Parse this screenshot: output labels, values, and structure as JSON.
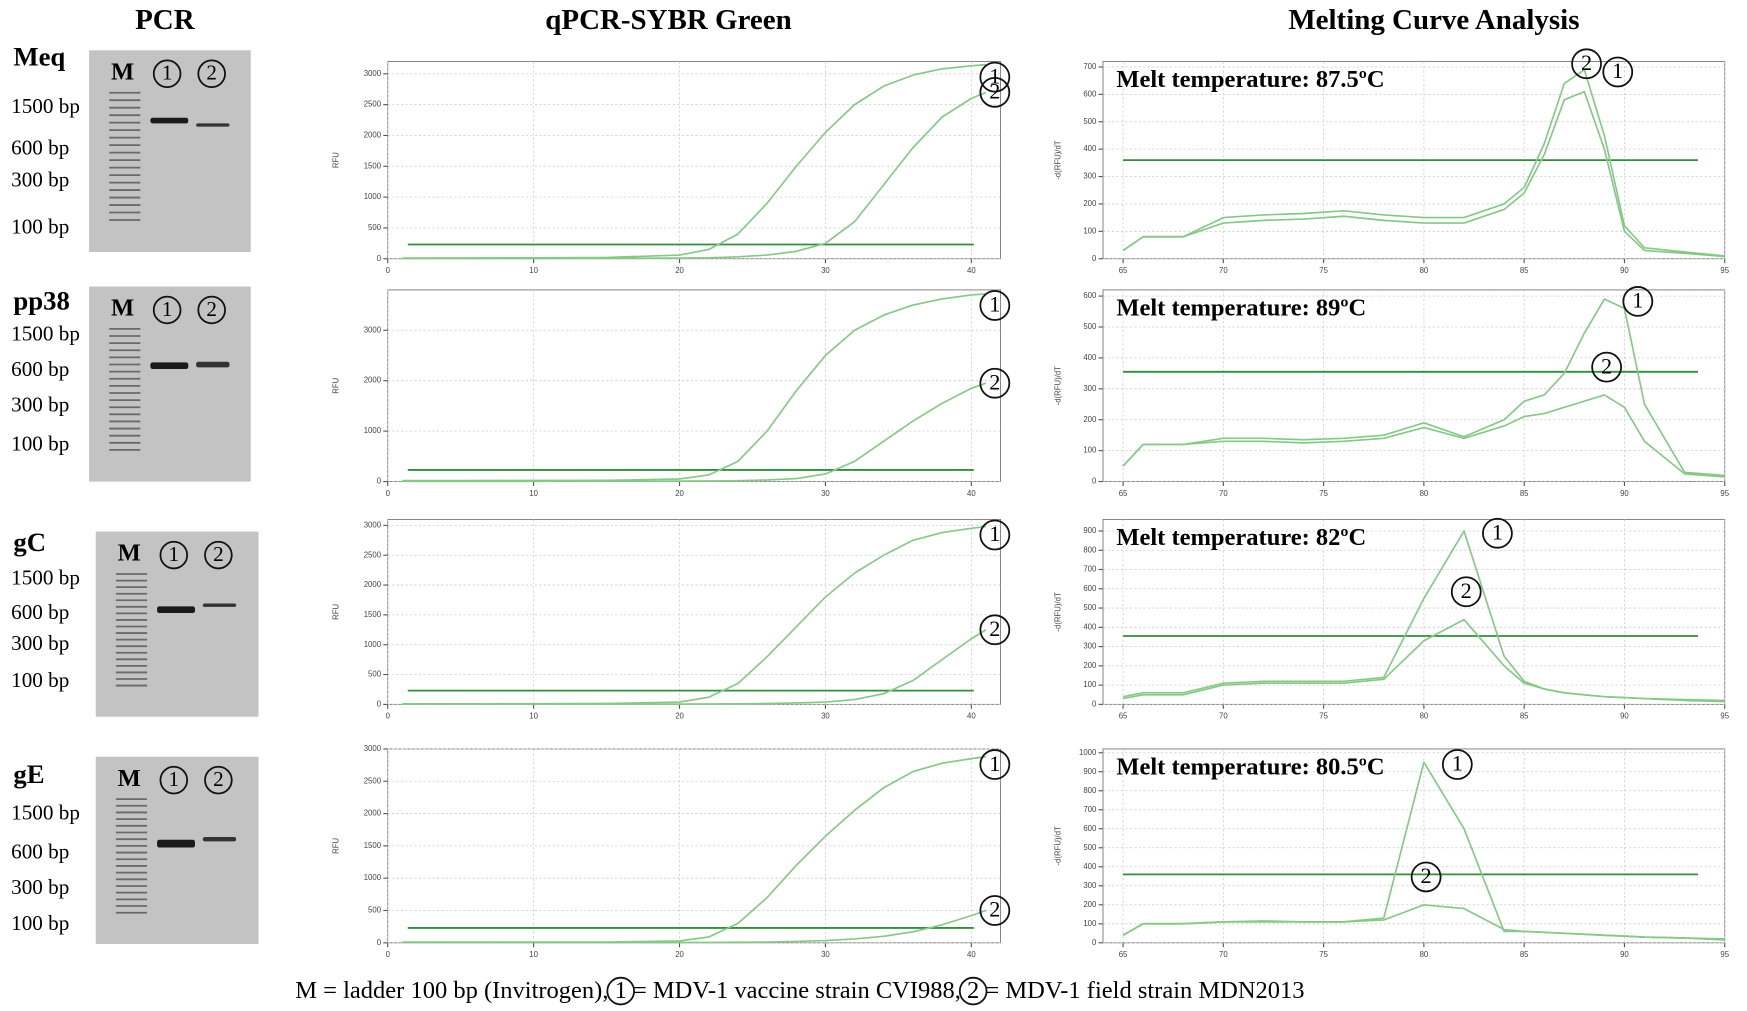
{
  "headings": {
    "pcr": "PCR",
    "qpcr": "qPCR-SYBR Green",
    "melt": "Melting Curve Analysis"
  },
  "gels": [
    {
      "gene": "Meq",
      "lanes": [
        "M",
        "1",
        "2"
      ],
      "ladder": [
        "1500 bp",
        "600 bp",
        "300 bp",
        "100 bp"
      ]
    },
    {
      "gene": "pp38",
      "lanes": [
        "M",
        "1",
        "2"
      ],
      "ladder": [
        "1500 bp",
        "600 bp",
        "300 bp",
        "100 bp"
      ]
    },
    {
      "gene": "gC",
      "lanes": [
        "M",
        "1",
        "2"
      ],
      "ladder": [
        "1500 bp",
        "600 bp",
        "300 bp",
        "100 bp"
      ]
    },
    {
      "gene": "gE",
      "lanes": [
        "M",
        "1",
        "2"
      ],
      "ladder": [
        "1500 bp",
        "600 bp",
        "300 bp",
        "100 bp"
      ]
    }
  ],
  "chart_data": [
    {
      "type": "line",
      "ylabel": "RFU",
      "x": [
        1,
        5,
        10,
        15,
        20,
        22,
        24,
        26,
        28,
        30,
        32,
        34,
        36,
        38,
        40,
        41
      ],
      "xlim": [
        0,
        42
      ],
      "xticks": [
        0,
        10,
        20,
        30,
        40
      ],
      "ylim": [
        0,
        3200
      ],
      "yticks": [
        0,
        500,
        1000,
        1500,
        2000,
        2500,
        3000
      ],
      "grid": true,
      "threshold": 230,
      "threshold_color": "#2f8f3a",
      "series": [
        {
          "name": "1",
          "color": "#86c986",
          "values": [
            10,
            12,
            15,
            20,
            60,
            150,
            400,
            900,
            1500,
            2050,
            2500,
            2800,
            2980,
            3080,
            3130,
            3150
          ]
        },
        {
          "name": "2",
          "color": "#86c986",
          "values": [
            5,
            5,
            6,
            8,
            10,
            15,
            30,
            60,
            120,
            250,
            600,
            1200,
            1800,
            2300,
            2600,
            2700
          ]
        }
      ]
    },
    {
      "type": "line",
      "ylabel": "-d(RFU)/dT",
      "annotation": "Melt temperature: 87.5ºC",
      "x": [
        65,
        66,
        67,
        68,
        70,
        72,
        74,
        76,
        78,
        80,
        82,
        84,
        85,
        86,
        87,
        88,
        89,
        90,
        91,
        93,
        95
      ],
      "xlim": [
        64,
        95
      ],
      "xticks": [
        65,
        70,
        75,
        80,
        85,
        90,
        95
      ],
      "ylim": [
        0,
        720
      ],
      "yticks": [
        0,
        100,
        200,
        300,
        400,
        500,
        600,
        700
      ],
      "grid": true,
      "threshold": 360,
      "threshold_color": "#2f8f3a",
      "series": [
        {
          "name": "1",
          "color": "#86c986",
          "values": [
            30,
            80,
            80,
            80,
            150,
            160,
            165,
            175,
            160,
            150,
            150,
            200,
            260,
            420,
            640,
            690,
            450,
            120,
            40,
            25,
            10
          ]
        },
        {
          "name": "2",
          "color": "#86c986",
          "values": [
            30,
            80,
            80,
            80,
            130,
            140,
            145,
            155,
            140,
            130,
            130,
            180,
            240,
            380,
            580,
            610,
            400,
            100,
            30,
            20,
            8
          ]
        }
      ]
    },
    {
      "type": "line",
      "ylabel": "RFU",
      "x": [
        1,
        5,
        10,
        15,
        20,
        22,
        24,
        26,
        28,
        30,
        32,
        34,
        36,
        38,
        40,
        41
      ],
      "xlim": [
        0,
        42
      ],
      "xticks": [
        0,
        10,
        20,
        30,
        40
      ],
      "ylim": [
        0,
        3800
      ],
      "yticks": [
        0,
        1000,
        2000,
        3000
      ],
      "grid": true,
      "threshold": 230,
      "threshold_color": "#2f8f3a",
      "series": [
        {
          "name": "1",
          "color": "#86c986",
          "values": [
            20,
            20,
            22,
            25,
            50,
            130,
            400,
            1000,
            1800,
            2500,
            3000,
            3300,
            3500,
            3620,
            3700,
            3720
          ]
        },
        {
          "name": "2",
          "color": "#86c986",
          "values": [
            5,
            5,
            5,
            6,
            8,
            10,
            15,
            30,
            60,
            150,
            400,
            800,
            1200,
            1550,
            1850,
            1950
          ]
        }
      ]
    },
    {
      "type": "line",
      "ylabel": "-d(RFU)/dT",
      "annotation": "Melt temperature: 89ºC",
      "x": [
        65,
        66,
        67,
        68,
        70,
        72,
        74,
        76,
        78,
        80,
        82,
        84,
        85,
        86,
        87,
        88,
        89,
        90,
        91,
        93,
        95
      ],
      "xlim": [
        64,
        95
      ],
      "xticks": [
        65,
        70,
        75,
        80,
        85,
        90,
        95
      ],
      "ylim": [
        0,
        620
      ],
      "yticks": [
        0,
        100,
        200,
        300,
        400,
        500,
        600
      ],
      "grid": true,
      "threshold": 355,
      "threshold_color": "#2f8f3a",
      "series": [
        {
          "name": "1",
          "color": "#86c986",
          "values": [
            50,
            120,
            120,
            120,
            140,
            140,
            135,
            140,
            150,
            190,
            145,
            200,
            260,
            280,
            350,
            480,
            590,
            560,
            250,
            30,
            20
          ]
        },
        {
          "name": "2",
          "color": "#86c986",
          "values": [
            50,
            120,
            120,
            120,
            130,
            130,
            125,
            130,
            140,
            175,
            140,
            180,
            210,
            220,
            240,
            260,
            280,
            240,
            130,
            25,
            15
          ]
        }
      ]
    },
    {
      "type": "line",
      "ylabel": "RFU",
      "x": [
        1,
        5,
        10,
        15,
        20,
        22,
        24,
        26,
        28,
        30,
        32,
        34,
        36,
        38,
        40,
        41
      ],
      "xlim": [
        0,
        42
      ],
      "xticks": [
        0,
        10,
        20,
        30,
        40
      ],
      "ylim": [
        0,
        3100
      ],
      "yticks": [
        0,
        500,
        1000,
        1500,
        2000,
        2500,
        3000
      ],
      "grid": true,
      "threshold": 230,
      "threshold_color": "#2f8f3a",
      "series": [
        {
          "name": "1",
          "color": "#86c986",
          "values": [
            10,
            10,
            12,
            15,
            40,
            120,
            350,
            800,
            1300,
            1800,
            2200,
            2500,
            2750,
            2880,
            2950,
            2980
          ]
        },
        {
          "name": "2",
          "color": "#86c986",
          "values": [
            5,
            5,
            5,
            6,
            6,
            8,
            10,
            15,
            25,
            40,
            80,
            180,
            400,
            750,
            1100,
            1250
          ]
        }
      ]
    },
    {
      "type": "line",
      "ylabel": "-d(RFU)/dT",
      "annotation": "Melt temperature: 82ºC",
      "x": [
        65,
        66,
        67,
        68,
        70,
        72,
        74,
        76,
        78,
        80,
        82,
        84,
        85,
        86,
        87,
        88,
        89,
        90,
        91,
        93,
        95
      ],
      "xlim": [
        64,
        95
      ],
      "xticks": [
        65,
        70,
        75,
        80,
        85,
        90,
        95
      ],
      "ylim": [
        0,
        960
      ],
      "yticks": [
        0,
        100,
        200,
        300,
        400,
        500,
        600,
        700,
        800,
        900
      ],
      "grid": true,
      "threshold": 355,
      "threshold_color": "#2f8f3a",
      "series": [
        {
          "name": "1",
          "color": "#86c986",
          "values": [
            40,
            60,
            60,
            60,
            110,
            120,
            120,
            120,
            140,
            550,
            900,
            250,
            120,
            80,
            60,
            50,
            40,
            35,
            30,
            25,
            20
          ]
        },
        {
          "name": "2",
          "color": "#86c986",
          "values": [
            30,
            50,
            50,
            50,
            100,
            110,
            110,
            110,
            130,
            330,
            440,
            200,
            110,
            80,
            60,
            50,
            40,
            35,
            30,
            20,
            15
          ]
        }
      ]
    },
    {
      "type": "line",
      "ylabel": "RFU",
      "x": [
        1,
        5,
        10,
        15,
        20,
        22,
        24,
        26,
        28,
        30,
        32,
        34,
        36,
        38,
        40,
        41
      ],
      "xlim": [
        0,
        42
      ],
      "xticks": [
        0,
        10,
        20,
        30,
        40
      ],
      "ylim": [
        0,
        3000
      ],
      "yticks": [
        0,
        500,
        1000,
        1500,
        2000,
        2500,
        3000
      ],
      "grid": true,
      "threshold": 230,
      "threshold_color": "#2f8f3a",
      "series": [
        {
          "name": "1",
          "color": "#86c986",
          "values": [
            10,
            10,
            10,
            12,
            30,
            90,
            300,
            700,
            1200,
            1650,
            2050,
            2400,
            2650,
            2780,
            2850,
            2880
          ]
        },
        {
          "name": "2",
          "color": "#86c986",
          "values": [
            5,
            5,
            5,
            5,
            5,
            6,
            8,
            12,
            20,
            35,
            60,
            100,
            170,
            280,
            420,
            500
          ]
        }
      ]
    },
    {
      "type": "line",
      "ylabel": "-d(RFU)/dT",
      "annotation": "Melt temperature: 80.5ºC",
      "x": [
        65,
        66,
        67,
        68,
        70,
        72,
        74,
        76,
        78,
        80,
        82,
        84,
        85,
        86,
        87,
        88,
        89,
        90,
        91,
        93,
        95
      ],
      "xlim": [
        64,
        95
      ],
      "xticks": [
        65,
        70,
        75,
        80,
        85,
        90,
        95
      ],
      "ylim": [
        0,
        1020
      ],
      "yticks": [
        0,
        100,
        200,
        300,
        400,
        500,
        600,
        700,
        800,
        900,
        1000
      ],
      "grid": true,
      "threshold": 360,
      "threshold_color": "#2f8f3a",
      "series": [
        {
          "name": "1",
          "color": "#86c986",
          "values": [
            40,
            100,
            100,
            100,
            110,
            110,
            110,
            110,
            130,
            950,
            600,
            60,
            60,
            55,
            50,
            45,
            40,
            35,
            30,
            25,
            20
          ]
        },
        {
          "name": "2",
          "color": "#86c986",
          "values": [
            40,
            100,
            100,
            100,
            110,
            115,
            110,
            110,
            120,
            200,
            180,
            70,
            60,
            55,
            50,
            45,
            40,
            35,
            30,
            25,
            15
          ]
        }
      ]
    }
  ],
  "caption": [
    "M = ladder 100 bp (Invitrogen), ",
    "1",
    " = MDV-1 vaccine strain CVI988, ",
    "2",
    " = MDV-1 field strain MDN2013"
  ]
}
